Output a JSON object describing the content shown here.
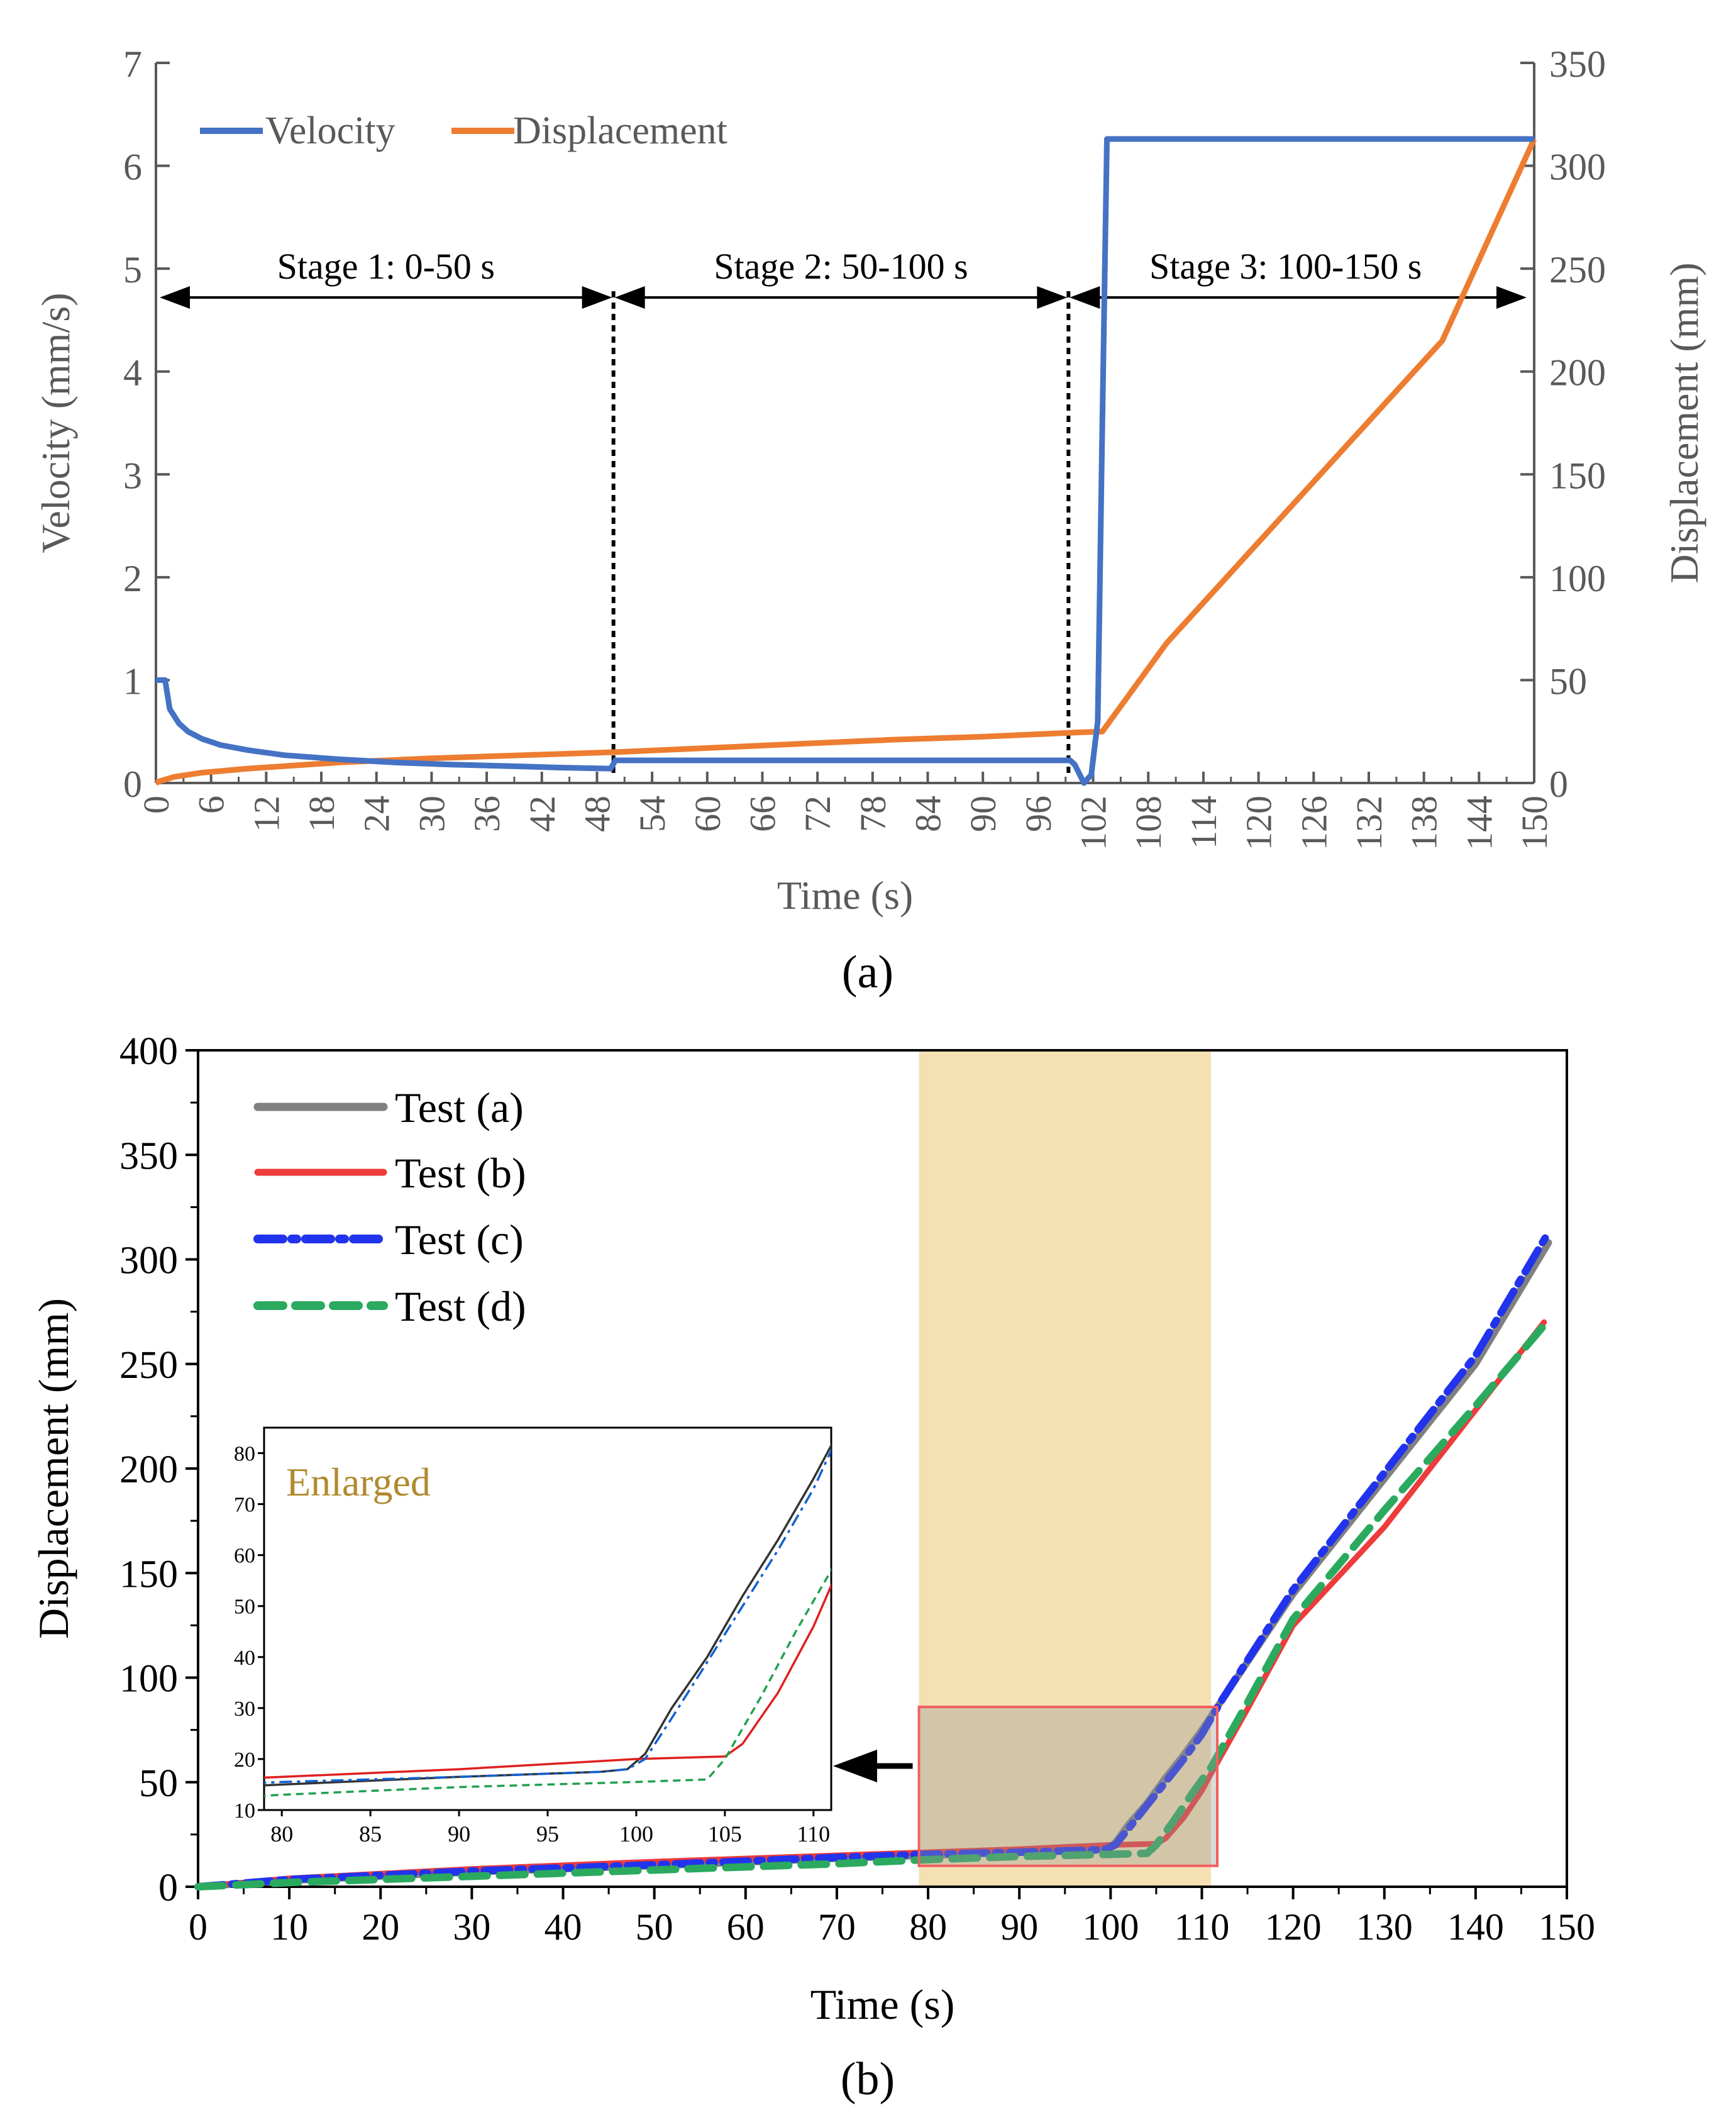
{
  "colors": {
    "velocity": "#4472C4",
    "displacement": "#ED7D31",
    "test_a": "#808080",
    "test_b": "#EE3B3B",
    "test_c": "#2233EE",
    "test_d": "#2BAA5F",
    "highlight": "#F5E0B3",
    "enlarged_text": "#B08A2E",
    "box_edge": "#F06060",
    "gray_axis": "#595959"
  },
  "chart_data": [
    {
      "type": "line",
      "panel_label": "(a)",
      "title": "",
      "xlabel": "Time (s)",
      "ylabel_left": "Velocity (mm/s)",
      "ylabel_right": "Displacement (mm)",
      "xlim": [
        0,
        150
      ],
      "ylim_left": [
        0,
        7
      ],
      "ylim_right": [
        0,
        350
      ],
      "x_ticks": [
        "0",
        "6",
        "12",
        "18",
        "24",
        "30",
        "36",
        "42",
        "48",
        "54",
        "60",
        "66",
        "72",
        "78",
        "84",
        "90",
        "96",
        "102",
        "108",
        "114",
        "120",
        "126",
        "132",
        "138",
        "144",
        "150"
      ],
      "y_ticks_left": [
        "0",
        "1",
        "2",
        "3",
        "4",
        "5",
        "6",
        "7"
      ],
      "y_ticks_right": [
        "0",
        "50",
        "100",
        "150",
        "200",
        "250",
        "300",
        "350"
      ],
      "legend": [
        "Velocity",
        "Displacement"
      ],
      "stage_labels": [
        "Stage 1: 0-50 s",
        "Stage 2: 50-100 s",
        "Stage 3: 100-150 s"
      ],
      "stage_bounds": [
        0,
        50,
        100,
        150
      ],
      "stage_arrow_y": 4.72,
      "series": [
        {
          "name": "Velocity",
          "axis": "left",
          "x": [
            0,
            1,
            1.5,
            2.5,
            3.5,
            5,
            7,
            10,
            14,
            20,
            26,
            32,
            40,
            44,
            49.5,
            50,
            99.5,
            100,
            101,
            101.8,
            102.5,
            103,
            103.5,
            150
          ],
          "y": [
            1.0,
            1.0,
            0.72,
            0.58,
            0.5,
            0.43,
            0.37,
            0.32,
            0.27,
            0.23,
            0.2,
            0.18,
            0.16,
            0.15,
            0.14,
            0.22,
            0.22,
            0.18,
            0.0,
            0.08,
            0.6,
            3.5,
            6.26,
            6.26
          ]
        },
        {
          "name": "Displacement",
          "axis": "right",
          "x": [
            0,
            0.5,
            2,
            5,
            10,
            20,
            30,
            40,
            50,
            60,
            70,
            80,
            90,
            100,
            103,
            110,
            120,
            130,
            140,
            150
          ],
          "y": [
            0,
            1,
            3,
            5,
            7,
            10,
            12,
            13.5,
            15,
            17,
            19,
            21,
            22.5,
            24.5,
            25,
            68,
            117,
            166,
            215,
            313
          ]
        }
      ]
    },
    {
      "type": "line",
      "panel_label": "(b)",
      "title": "",
      "xlabel": "Time (s)",
      "ylabel": "Displacement (mm)",
      "xlim": [
        0,
        150
      ],
      "ylim": [
        0,
        400
      ],
      "x_ticks": [
        "0",
        "10",
        "20",
        "30",
        "40",
        "50",
        "60",
        "70",
        "80",
        "90",
        "100",
        "110",
        "120",
        "130",
        "140",
        "150"
      ],
      "y_ticks": [
        "0",
        "50",
        "100",
        "150",
        "200",
        "250",
        "300",
        "350",
        "400"
      ],
      "highlight_band": [
        79,
        111
      ],
      "zoom_box": {
        "x": [
          79,
          111
        ],
        "y": [
          10,
          86
        ]
      },
      "series": [
        {
          "name": "Test (a)",
          "x": [
            0,
            10,
            30,
            50,
            70,
            80,
            90,
            98,
            99.5,
            100.5,
            102,
            104,
            106,
            108,
            110,
            112,
            120,
            130,
            140,
            148
          ],
          "y": [
            0,
            3,
            7,
            10,
            13.5,
            15,
            16.5,
            17.5,
            18,
            21,
            30,
            40,
            52,
            63,
            75,
            88,
            140,
            195,
            250,
            308
          ]
        },
        {
          "name": "Test (b)",
          "x": [
            0,
            10,
            30,
            50,
            70,
            80,
            90,
            95,
            100,
            105,
            106,
            108,
            110,
            111,
            115,
            120,
            130,
            140,
            147.5
          ],
          "y": [
            0,
            4,
            8.5,
            12,
            15,
            16.5,
            18,
            19,
            20,
            20.5,
            23,
            33,
            46,
            54,
            85,
            125,
            172,
            228,
            270
          ]
        },
        {
          "name": "Test (c)",
          "x": [
            0,
            10,
            30,
            50,
            70,
            80,
            90,
            98,
            99.5,
            100.5,
            102,
            104,
            106,
            108,
            110,
            112,
            120,
            130,
            140,
            148
          ],
          "y": [
            0,
            3.5,
            7.5,
            10.5,
            14,
            15.5,
            16.5,
            17.5,
            18,
            20,
            28,
            39,
            50,
            61,
            73,
            88,
            142,
            198,
            254,
            313
          ]
        },
        {
          "name": "Test (d)",
          "x": [
            0,
            10,
            30,
            50,
            70,
            80,
            90,
            100,
            104,
            105,
            107,
            109,
            111,
            115,
            120,
            130,
            140,
            148
          ],
          "y": [
            0,
            2,
            5,
            8,
            11,
            13,
            14.5,
            15.5,
            16,
            20,
            32,
            45,
            57,
            88,
            128,
            180,
            230,
            271
          ]
        }
      ],
      "inset": {
        "label": "Enlarged",
        "xlim": [
          79,
          111
        ],
        "ylim": [
          10,
          85
        ],
        "x_ticks": [
          "80",
          "85",
          "90",
          "95",
          "100",
          "105",
          "110"
        ],
        "y_ticks": [
          "10",
          "20",
          "30",
          "40",
          "50",
          "60",
          "70",
          "80"
        ]
      }
    }
  ]
}
